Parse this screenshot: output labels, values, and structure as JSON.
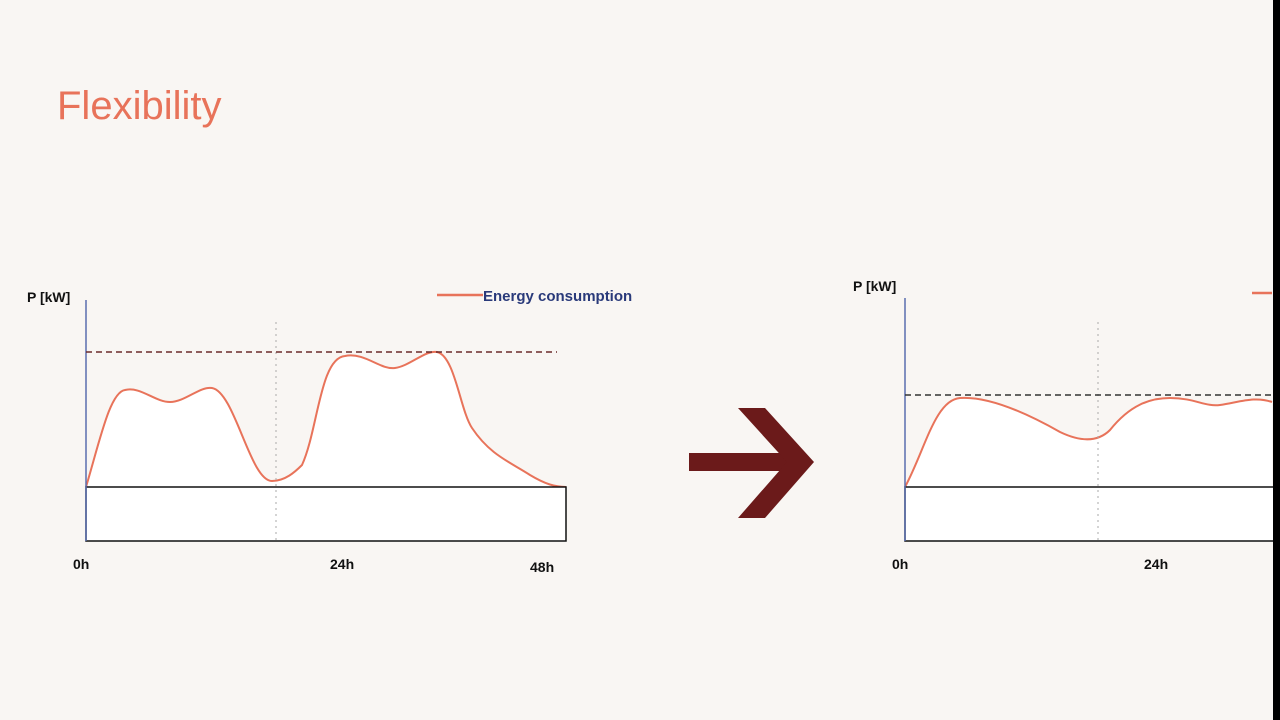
{
  "title": "Flexibility",
  "left_chart": {
    "y_label": "P [kW]",
    "legend": "Energy consumption",
    "x_labels": [
      "0h",
      "24h",
      "48h"
    ]
  },
  "right_chart": {
    "y_label": "P [kW]",
    "x_labels": [
      "0h",
      "24h"
    ]
  }
}
